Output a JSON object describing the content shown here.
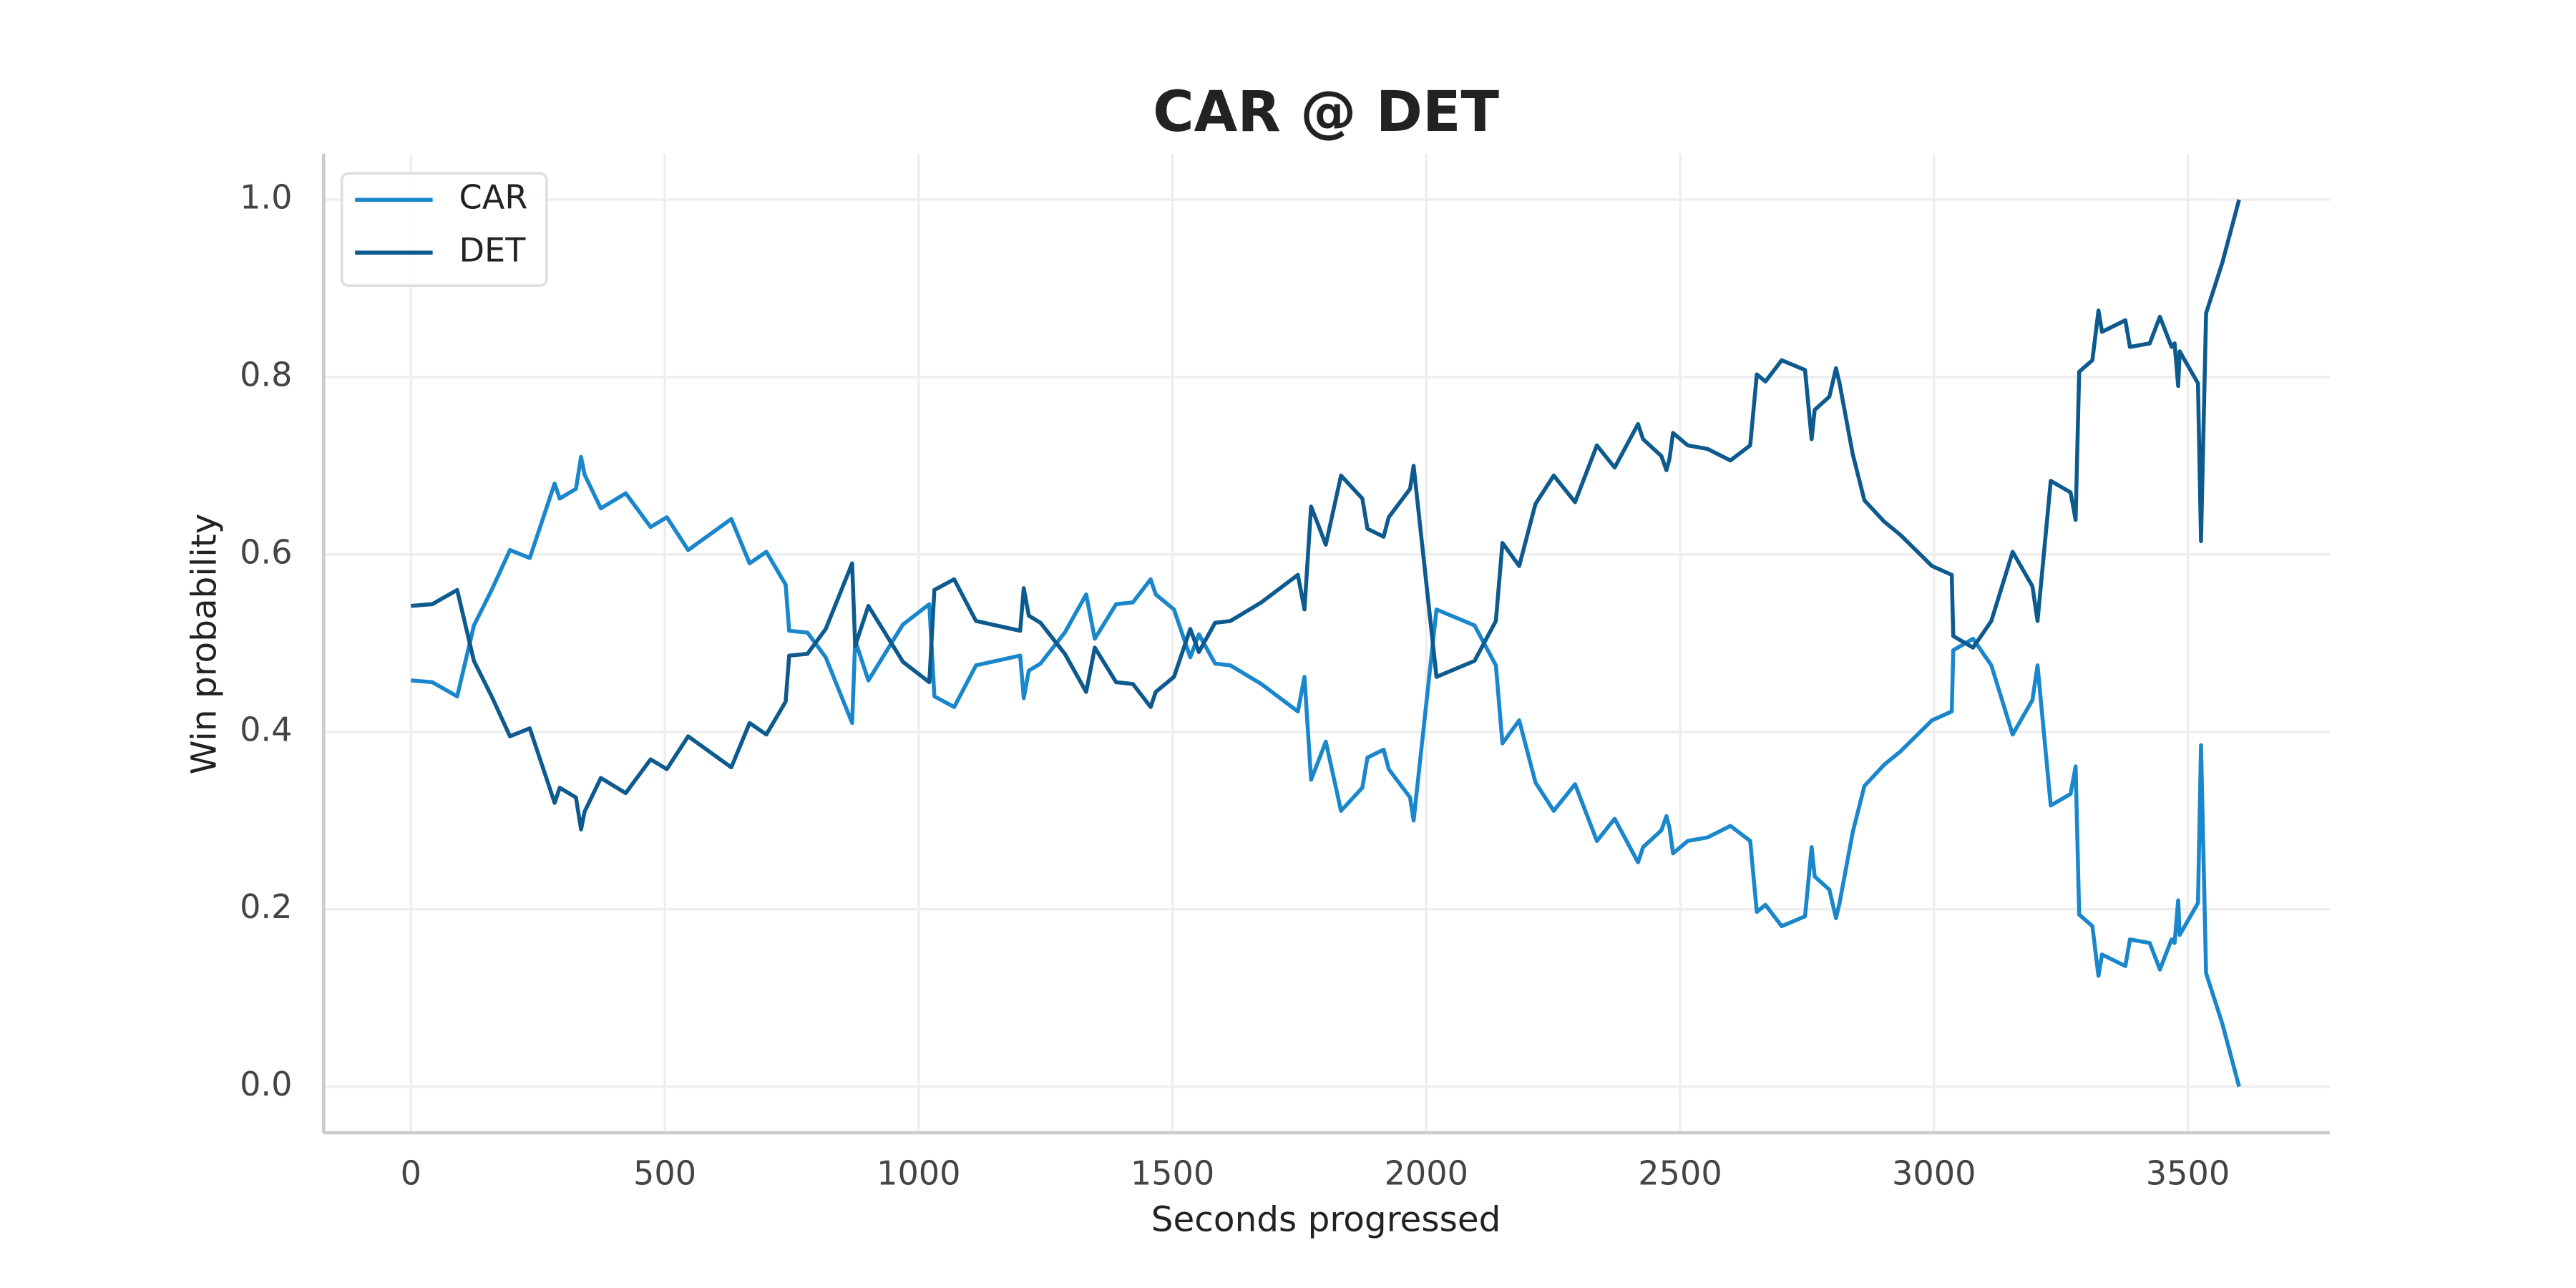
{
  "chart_data": {
    "type": "line",
    "title": "CAR @ DET",
    "xlabel": "Seconds progressed",
    "ylabel": "Win probability",
    "x": [
      0,
      42,
      91,
      124,
      159,
      195,
      234,
      283,
      293,
      325,
      335,
      342,
      374,
      423,
      472,
      504,
      546,
      631,
      667,
      700,
      738,
      745,
      781,
      817,
      869,
      875,
      901,
      969,
      1021,
      1031,
      1070,
      1113,
      1200,
      1207,
      1217,
      1240,
      1288,
      1330,
      1347,
      1389,
      1422,
      1457,
      1467,
      1503,
      1535,
      1552,
      1584,
      1614,
      1675,
      1747,
      1760,
      1773,
      1786,
      1802,
      1832,
      1874,
      1884,
      1916,
      1926,
      1968,
      1975,
      2020,
      2095,
      2137,
      2150,
      2183,
      2215,
      2251,
      2293,
      2336,
      2371,
      2417,
      2427,
      2463,
      2473,
      2479,
      2486,
      2515,
      2554,
      2599,
      2638,
      2651,
      2668,
      2700,
      2746,
      2759,
      2765,
      2794,
      2807,
      2814,
      2840,
      2863,
      2902,
      2934,
      2996,
      3035,
      3038,
      3077,
      3113,
      3155,
      3194,
      3204,
      3230,
      3269,
      3279,
      3286,
      3312,
      3324,
      3331,
      3377,
      3386,
      3425,
      3445,
      3468,
      3474,
      3481,
      3484,
      3520,
      3526,
      3536,
      3568,
      3601
    ],
    "series": [
      {
        "name": "CAR",
        "color": "#1a87cc",
        "values": [
          0.458,
          0.456,
          0.44,
          0.52,
          0.56,
          0.605,
          0.596,
          0.68,
          0.663,
          0.674,
          0.71,
          0.69,
          0.652,
          0.669,
          0.631,
          0.642,
          0.605,
          0.64,
          0.59,
          0.603,
          0.566,
          0.514,
          0.512,
          0.484,
          0.41,
          0.503,
          0.458,
          0.521,
          0.544,
          0.44,
          0.428,
          0.475,
          0.486,
          0.438,
          0.469,
          0.477,
          0.512,
          0.555,
          0.505,
          0.544,
          0.546,
          0.572,
          0.555,
          0.538,
          0.484,
          0.51,
          0.477,
          0.475,
          0.454,
          0.423,
          0.462,
          0.346,
          0.365,
          0.389,
          0.311,
          0.337,
          0.371,
          0.38,
          0.358,
          0.326,
          0.3,
          0.538,
          0.52,
          0.475,
          0.387,
          0.413,
          0.343,
          0.311,
          0.341,
          0.277,
          0.302,
          0.253,
          0.27,
          0.289,
          0.305,
          0.292,
          0.263,
          0.277,
          0.281,
          0.294,
          0.277,
          0.197,
          0.205,
          0.181,
          0.192,
          0.27,
          0.237,
          0.222,
          0.19,
          0.207,
          0.287,
          0.339,
          0.363,
          0.378,
          0.413,
          0.423,
          0.492,
          0.505,
          0.475,
          0.397,
          0.436,
          0.475,
          0.317,
          0.33,
          0.361,
          0.194,
          0.181,
          0.125,
          0.149,
          0.136,
          0.166,
          0.162,
          0.132,
          0.166,
          0.162,
          0.21,
          0.171,
          0.207,
          0.385,
          0.128,
          0.071,
          0.0
        ]
      },
      {
        "name": "DET",
        "color": "#0d5a8f",
        "values": [
          0.542,
          0.544,
          0.56,
          0.48,
          0.44,
          0.395,
          0.404,
          0.32,
          0.337,
          0.326,
          0.29,
          0.31,
          0.348,
          0.331,
          0.369,
          0.358,
          0.395,
          0.36,
          0.41,
          0.397,
          0.434,
          0.486,
          0.488,
          0.516,
          0.59,
          0.497,
          0.542,
          0.479,
          0.456,
          0.56,
          0.572,
          0.525,
          0.514,
          0.562,
          0.531,
          0.523,
          0.488,
          0.445,
          0.495,
          0.456,
          0.454,
          0.428,
          0.445,
          0.462,
          0.516,
          0.49,
          0.523,
          0.525,
          0.546,
          0.577,
          0.538,
          0.654,
          0.635,
          0.611,
          0.689,
          0.663,
          0.629,
          0.62,
          0.642,
          0.674,
          0.7,
          0.462,
          0.48,
          0.525,
          0.613,
          0.587,
          0.657,
          0.689,
          0.659,
          0.723,
          0.698,
          0.747,
          0.73,
          0.711,
          0.695,
          0.708,
          0.737,
          0.723,
          0.719,
          0.706,
          0.723,
          0.803,
          0.795,
          0.819,
          0.808,
          0.73,
          0.763,
          0.778,
          0.81,
          0.793,
          0.713,
          0.661,
          0.637,
          0.622,
          0.587,
          0.577,
          0.508,
          0.495,
          0.525,
          0.603,
          0.564,
          0.525,
          0.683,
          0.67,
          0.639,
          0.806,
          0.819,
          0.875,
          0.851,
          0.864,
          0.834,
          0.838,
          0.868,
          0.834,
          0.838,
          0.79,
          0.829,
          0.793,
          0.615,
          0.872,
          0.929,
          1.0
        ]
      }
    ],
    "xlim": [
      -172,
      3780
    ],
    "ylim": [
      -0.052,
      1.052
    ],
    "xticks": [
      0,
      500,
      1000,
      1500,
      2000,
      2500,
      3000,
      3500
    ],
    "yticks": [
      {
        "value": 0,
        "label": "0.0"
      },
      0.2,
      0.4,
      0.6,
      0.8,
      {
        "value": 1,
        "label": "1.0"
      }
    ],
    "grid": true,
    "legend": "upper left"
  }
}
